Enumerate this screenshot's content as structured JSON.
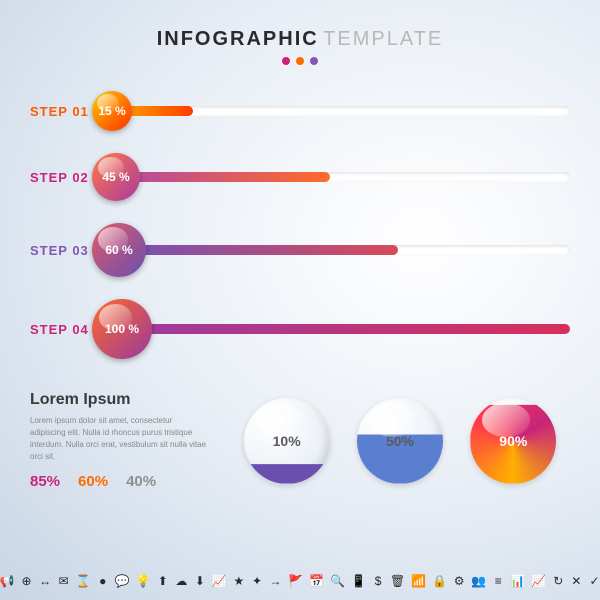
{
  "header": {
    "title_bold": "INFOGRAPHIC",
    "title_light": "TEMPLATE",
    "title_bold_color": "#2a2a2a",
    "title_light_color": "#b8b8b8",
    "dot_colors": [
      "#c9247a",
      "#ff6a00",
      "#8455b5"
    ]
  },
  "steps": [
    {
      "label": "STEP 01",
      "label_color": "#ff5a00",
      "percent": "15 %",
      "percent_value": 15,
      "circle_size": 40,
      "circle_gradient": [
        "#ffcc00",
        "#ff2e00"
      ],
      "bar_gradient": [
        "#ff9a00",
        "#ff3a00"
      ]
    },
    {
      "label": "STEP 02",
      "label_color": "#c9247a",
      "percent": "45 %",
      "percent_value": 45,
      "circle_size": 48,
      "circle_gradient": [
        "#ff7b4a",
        "#a93a9c"
      ],
      "bar_gradient": [
        "#b84c99",
        "#ff6a2a"
      ]
    },
    {
      "label": "STEP 03",
      "label_color": "#8455b5",
      "percent": "60 %",
      "percent_value": 60,
      "circle_size": 54,
      "circle_gradient": [
        "#e05a6a",
        "#6a4fb0"
      ],
      "bar_gradient": [
        "#7a52b0",
        "#d84a5a"
      ]
    },
    {
      "label": "STEP 04",
      "label_color": "#c9247a",
      "percent": "100 %",
      "percent_value": 100,
      "circle_size": 60,
      "circle_gradient": [
        "#ff6a2a",
        "#9a3a9c"
      ],
      "bar_gradient": [
        "#a03a9c",
        "#d6305a"
      ]
    }
  ],
  "track": {
    "height": 10,
    "bg": "#ffffff"
  },
  "lorem": {
    "title": "Lorem Ipsum",
    "body": "Lorem ipsum dolor sit amet, consectetur adipiscing elit. Nulla id rhoncus purus tristique interdum. Nulla orci erat, vestibulum sit nulla vitae orci sit."
  },
  "percent_stats": [
    {
      "value": "85%",
      "color": "#c9247a"
    },
    {
      "value": "60%",
      "color": "#ff6a00"
    },
    {
      "value": "40%",
      "color": "#8f8f8f"
    }
  ],
  "gauges": [
    {
      "label": "10%",
      "value": 10,
      "fill_color": "#6a4fb0",
      "label_color": "#5a5a5a"
    },
    {
      "label": "50%",
      "value": 50,
      "fill_color": "#5a7fd0",
      "label_color": "#5a5a5a"
    },
    {
      "label": "90%",
      "value": 90,
      "fill_gradient": [
        "#ffb000",
        "#ff3a4a",
        "#c9247a"
      ],
      "label_color": "#ffffff"
    }
  ],
  "icons": [
    "📢",
    "⊕",
    "↔",
    "✉",
    "⌛",
    "●",
    "💬",
    "💡",
    "⬆",
    "☁",
    "⬇",
    "📈",
    "★",
    "✦",
    "→",
    "🚩",
    "📅",
    "🔍",
    "📱",
    "$",
    "🗑",
    "📶",
    "🔒",
    "⚙",
    "👥",
    "≡",
    "📊",
    "📈",
    "↻",
    "✕",
    "✓"
  ]
}
